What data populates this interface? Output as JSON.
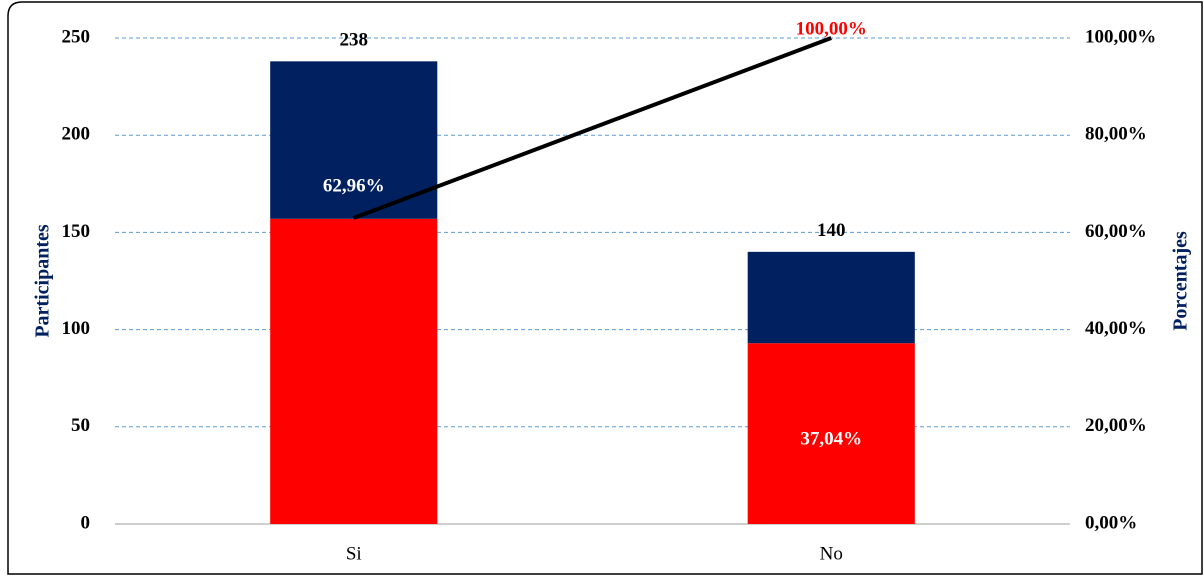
{
  "chart_data": {
    "type": "bar",
    "categories": [
      "Si",
      "No"
    ],
    "series": [
      {
        "color": "#ff0000",
        "values": [
          157,
          93
        ]
      },
      {
        "color": "#002060",
        "values": [
          81,
          47
        ]
      }
    ],
    "totals": {
      "values": [
        238,
        140
      ]
    },
    "shares": {
      "values": [
        62.96,
        37.04
      ],
      "value_labels": [
        "62,96%",
        "37,04%"
      ]
    },
    "line": {
      "color": "#000000",
      "axis": "y2",
      "values": [
        62.96,
        100
      ],
      "value_labels": [
        null,
        "100,00%"
      ],
      "label_color": "#ff0000"
    },
    "ylabel": "Participantes",
    "y2label": "Porcentajes",
    "ylim": [
      0,
      250
    ],
    "yticks": [
      0,
      50,
      100,
      150,
      200,
      250
    ],
    "y2lim": [
      0,
      100
    ],
    "y2ticks": [
      {
        "value": 0,
        "label": "0,00%"
      },
      {
        "value": 20,
        "label": "20,00%"
      },
      {
        "value": 40,
        "label": "40,00%"
      },
      {
        "value": 60,
        "label": "60,00%"
      },
      {
        "value": 80,
        "label": "80,00%"
      },
      {
        "value": 100,
        "label": "100,00%"
      }
    ],
    "grid": true
  }
}
